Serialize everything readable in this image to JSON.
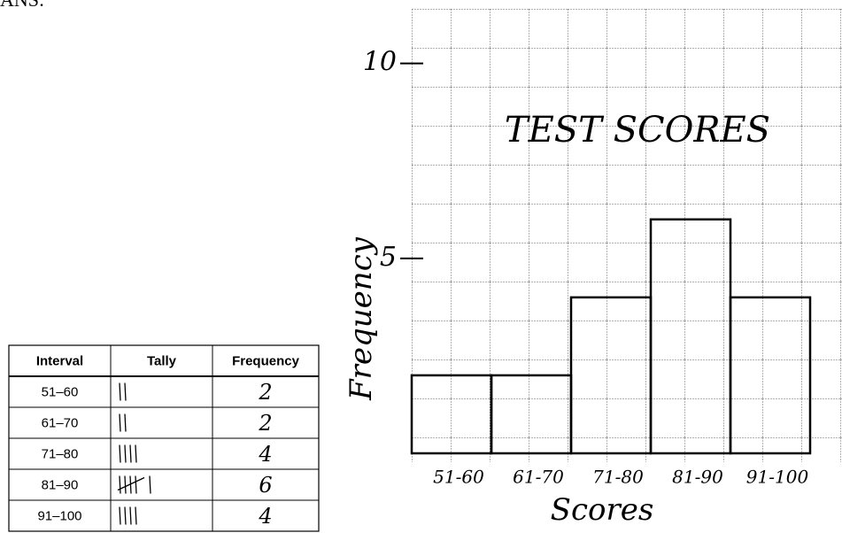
{
  "header": {
    "label": "ANS:"
  },
  "table": {
    "columns": [
      "Interval",
      "Tally",
      "Frequency"
    ],
    "rows": [
      [
        "51–60",
        2
      ],
      [
        "61–70",
        2
      ],
      [
        "71–80",
        4
      ],
      [
        "81–90",
        6
      ],
      [
        "91–100",
        4
      ]
    ]
  },
  "chart_data": {
    "type": "histogram",
    "title": "TEST SCORES",
    "x_label": "Scores",
    "y_label": "Frequency",
    "categories": [
      "51-60",
      "61-70",
      "71-80",
      "81-90",
      "91-100"
    ],
    "values": [
      2,
      2,
      4,
      6,
      4
    ],
    "color": "#000000",
    "ylim": [
      0,
      11.4
    ],
    "yticks": [
      5,
      10
    ]
  }
}
